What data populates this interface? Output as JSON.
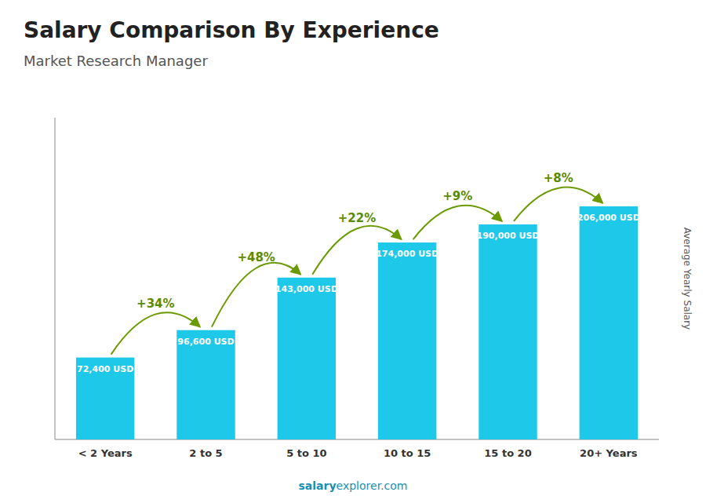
{
  "chart_data": {
    "type": "bar",
    "title": "Salary Comparison By Experience",
    "subtitle": "Market Research Manager",
    "categories": [
      "< 2 Years",
      "2 to 5",
      "5 to 10",
      "10 to 15",
      "15 to 20",
      "20+ Years"
    ],
    "values": [
      72400,
      96600,
      143000,
      174000,
      190000,
      206000
    ],
    "value_labels": [
      "72,400 USD",
      "96,600 USD",
      "143,000 USD",
      "174,000 USD",
      "190,000 USD",
      "206,000 USD"
    ],
    "data_labels": true,
    "annotations": [
      "+34%",
      "+48%",
      "+22%",
      "+9%",
      "+8%"
    ],
    "y_label": "Average Yearly Salary",
    "footer": [
      "salary",
      "explorer.com"
    ],
    "color": "#1ec8e8",
    "ylim": [
      0,
      284280
    ],
    "tick_labels": "x",
    "grid": false
  }
}
